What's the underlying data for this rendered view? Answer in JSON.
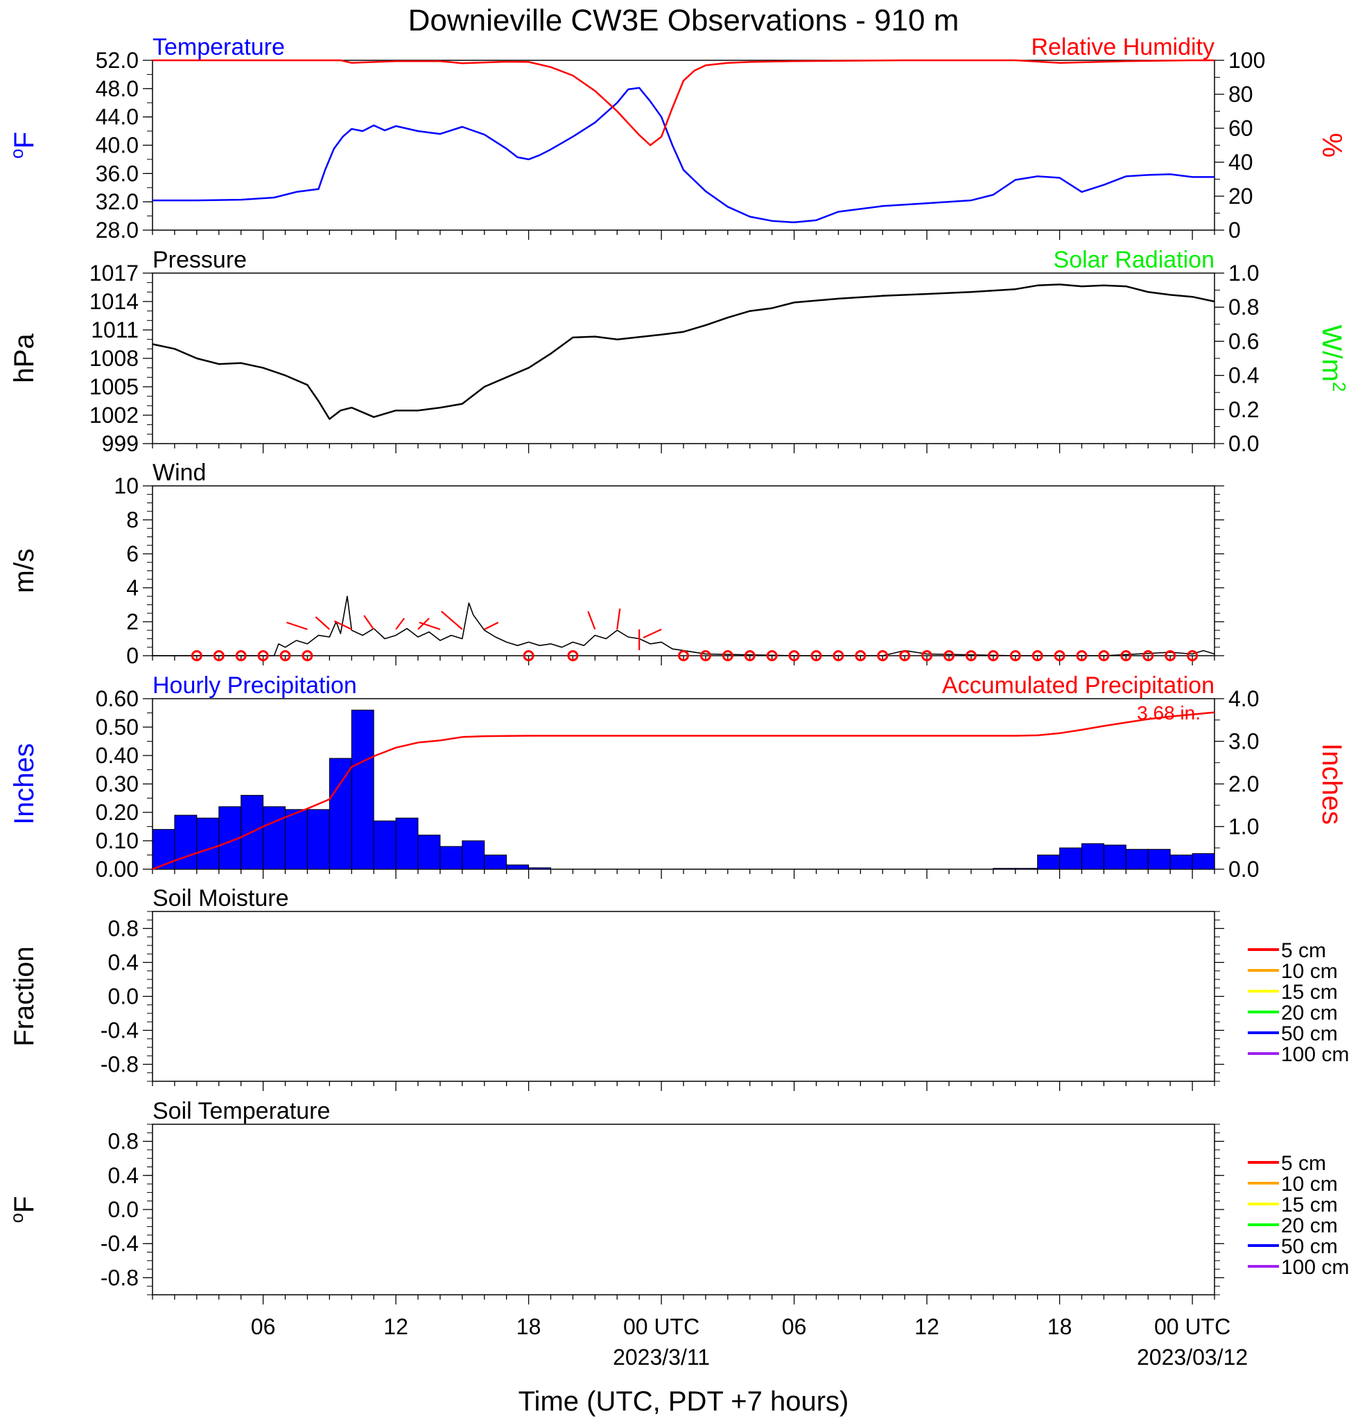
{
  "title": "Downieville CW3E Observations - 910 m",
  "xlabel": "Time (UTC, PDT +7 hours)",
  "x_axis": {
    "tick_labels": [
      "06",
      "12",
      "18",
      "00 UTC",
      "06",
      "12",
      "18",
      "00 UTC"
    ],
    "tick_hours": [
      6,
      12,
      18,
      24,
      30,
      36,
      42,
      48
    ],
    "date_labels": [
      {
        "hour": 24,
        "text": "2023/3/11"
      },
      {
        "hour": 48,
        "text": "2023/03/12"
      }
    ],
    "range_hours": [
      1,
      49
    ]
  },
  "colors": {
    "temperature": "#0000ff",
    "humidity": "#ff0000",
    "pressure": "#000000",
    "solar": "#00ee00",
    "wind": "#000000",
    "barbs": "#ff0000",
    "hourly_precip": "#0000ff",
    "accum_precip": "#ff0000"
  },
  "chart_data": [
    {
      "type": "line",
      "panel": "temperature-humidity",
      "left_title": "Temperature",
      "right_title": "Relative Humidity",
      "left_unit": "°F",
      "right_unit": "%",
      "ylim_left": [
        28,
        52
      ],
      "yticks_left": [
        "28.0",
        "32.0",
        "36.0",
        "40.0",
        "44.0",
        "48.0",
        "52.0"
      ],
      "ylim_right": [
        0,
        100
      ],
      "yticks_right": [
        "0",
        "20",
        "40",
        "60",
        "80",
        "100"
      ],
      "series": [
        {
          "name": "Temperature",
          "axis": "left",
          "x": [
            1,
            3,
            5,
            6.5,
            7.5,
            8.5,
            8.8,
            9.2,
            9.6,
            10,
            10.5,
            11,
            11.5,
            12,
            13,
            14,
            15,
            16,
            17,
            17.5,
            18,
            18.5,
            19,
            20,
            21,
            22,
            22.5,
            23,
            23.5,
            24,
            24.5,
            25,
            26,
            27,
            28,
            29,
            30,
            31,
            32,
            34,
            36,
            38,
            39,
            40,
            41,
            42,
            43,
            44,
            45,
            46,
            47,
            48,
            49
          ],
          "y": [
            32.2,
            32.2,
            32.3,
            32.6,
            33.4,
            33.8,
            36.5,
            39.5,
            41.2,
            42.3,
            42.0,
            42.8,
            42.1,
            42.7,
            42.0,
            41.6,
            42.6,
            41.5,
            39.5,
            38.3,
            38.0,
            38.6,
            39.4,
            41.2,
            43.2,
            46.0,
            47.9,
            48.1,
            46.2,
            44.0,
            40.0,
            36.5,
            33.5,
            31.3,
            29.9,
            29.3,
            29.1,
            29.4,
            30.6,
            31.4,
            31.8,
            32.2,
            33.0,
            35.1,
            35.6,
            35.4,
            33.4,
            34.4,
            35.6,
            35.8,
            35.9,
            35.5,
            35.5
          ]
        },
        {
          "name": "Relative Humidity",
          "axis": "right",
          "x": [
            1,
            6,
            9.5,
            10,
            12,
            14,
            15,
            17,
            18,
            19,
            20,
            21,
            22,
            22.5,
            23,
            23.5,
            24,
            24.5,
            25,
            25.5,
            26,
            27,
            28,
            30,
            35,
            40,
            42,
            45,
            48,
            49
          ],
          "y": [
            100,
            100,
            100,
            98.5,
            99.5,
            99.5,
            98.3,
            99.2,
            99,
            96,
            91,
            82,
            70,
            63,
            56,
            50,
            55,
            72,
            88,
            94,
            97,
            98.5,
            99,
            99.5,
            100,
            100,
            98.5,
            99.5,
            100,
            100
          ]
        }
      ]
    },
    {
      "type": "line",
      "panel": "pressure-solar",
      "left_title": "Pressure",
      "right_title": "Solar Radiation",
      "left_unit": "hPa",
      "right_unit": "W/m",
      "right_unit_sup": "2",
      "ylim_left": [
        999,
        1017
      ],
      "yticks_left": [
        "999",
        "1002",
        "1005",
        "1008",
        "1011",
        "1014",
        "1017"
      ],
      "ylim_right": [
        0,
        1
      ],
      "yticks_right": [
        "0.0",
        "0.2",
        "0.4",
        "0.6",
        "0.8",
        "1.0"
      ],
      "series": [
        {
          "name": "Pressure",
          "axis": "left",
          "x": [
            1,
            2,
            3,
            4,
            5,
            6,
            7,
            8,
            8.5,
            9,
            9.5,
            10,
            11,
            12,
            13,
            14,
            15,
            16,
            17,
            18,
            19,
            20,
            21,
            22,
            24,
            25,
            26,
            27,
            28,
            29,
            30,
            32,
            34,
            36,
            38,
            40,
            41,
            42,
            43,
            44,
            45,
            46,
            47,
            48,
            49
          ],
          "y": [
            1009.5,
            1009,
            1008,
            1007.4,
            1007.5,
            1007,
            1006.2,
            1005.2,
            1003.5,
            1001.6,
            1002.5,
            1002.8,
            1001.8,
            1002.5,
            1002.5,
            1002.8,
            1003.2,
            1005,
            1006,
            1007,
            1008.5,
            1010.2,
            1010.3,
            1010.0,
            1010.5,
            1010.8,
            1011.5,
            1012.3,
            1013,
            1013.3,
            1013.9,
            1014.3,
            1014.6,
            1014.8,
            1015,
            1015.3,
            1015.7,
            1015.8,
            1015.6,
            1015.7,
            1015.6,
            1015.0,
            1014.7,
            1014.5,
            1014
          ]
        }
      ]
    },
    {
      "type": "line",
      "panel": "wind",
      "left_title": "Wind",
      "left_unit": "m/s",
      "ylim_left": [
        0,
        10
      ],
      "yticks_left": [
        "0",
        "2",
        "4",
        "6",
        "8",
        "10"
      ],
      "series": [
        {
          "name": "Wind",
          "axis": "left",
          "x": [
            1,
            6.5,
            6.7,
            7,
            7.5,
            8,
            8.5,
            9,
            9.3,
            9.5,
            9.8,
            10,
            10.5,
            11,
            11.5,
            12,
            12.5,
            13,
            13.5,
            14,
            14.5,
            15,
            15.3,
            15.5,
            16,
            16.5,
            17,
            17.5,
            18,
            18.5,
            19,
            19.5,
            20,
            20.5,
            21,
            21.5,
            22,
            22.5,
            23,
            23.5,
            24,
            24.5,
            25,
            26,
            30,
            34,
            35,
            36,
            40,
            44,
            47,
            48,
            48.5,
            49
          ],
          "y": [
            0,
            0,
            0.7,
            0.5,
            0.9,
            0.7,
            1.2,
            1.1,
            2.0,
            1.3,
            3.5,
            1.5,
            1.2,
            1.6,
            1.0,
            1.2,
            1.6,
            1.1,
            1.4,
            0.9,
            1.2,
            1.0,
            3.1,
            2.4,
            1.5,
            1.1,
            0.8,
            0.6,
            0.8,
            0.6,
            0.7,
            0.5,
            0.8,
            0.6,
            1.2,
            1.0,
            1.5,
            1.1,
            1.0,
            0.7,
            0.8,
            0.4,
            0.3,
            0.1,
            0,
            0,
            0.3,
            0.1,
            0,
            0,
            0.2,
            0.1,
            0.3,
            0.1
          ]
        }
      ],
      "calm_markers_hours": [
        3,
        4,
        5,
        6,
        7,
        8,
        18,
        20,
        25,
        26,
        27,
        28,
        29,
        30,
        31,
        32,
        33,
        34,
        35,
        36,
        37,
        38,
        39,
        40,
        41,
        42,
        43,
        44,
        45,
        46,
        47,
        48
      ],
      "barbs": [
        {
          "hour": 8,
          "dx": -30,
          "dy": -10
        },
        {
          "hour": 9,
          "dx": -20,
          "dy": -18
        },
        {
          "hour": 10,
          "dx": -25,
          "dy": -12
        },
        {
          "hour": 11,
          "dx": -14,
          "dy": -20
        },
        {
          "hour": 12,
          "dx": 12,
          "dy": -16
        },
        {
          "hour": 13,
          "dx": 16,
          "dy": -16
        },
        {
          "hour": 14,
          "dx": -30,
          "dy": -10
        },
        {
          "hour": 15,
          "dx": -30,
          "dy": -26
        },
        {
          "hour": 16,
          "dx": 20,
          "dy": -10
        },
        {
          "hour": 21,
          "dx": -10,
          "dy": -26
        },
        {
          "hour": 22,
          "dx": 4,
          "dy": -30
        },
        {
          "hour": 23,
          "dx": 0,
          "dy": 30
        },
        {
          "hour": 24,
          "dx": -26,
          "dy": 12
        }
      ]
    },
    {
      "type": "bar",
      "panel": "precipitation",
      "left_title": "Hourly Precipitation",
      "right_title": "Accumulated Precipitation",
      "left_unit": "Inches",
      "right_unit": "Inches",
      "annotation": "3.68 in.",
      "ylim_left": [
        0,
        0.6
      ],
      "yticks_left": [
        "0.00",
        "0.10",
        "0.20",
        "0.30",
        "0.40",
        "0.50",
        "0.60"
      ],
      "ylim_right": [
        0,
        4
      ],
      "yticks_right": [
        "0.0",
        "1.0",
        "2.0",
        "3.0",
        "4.0"
      ],
      "hourly_bars": {
        "start_hours": [
          1,
          2,
          3,
          4,
          5,
          6,
          7,
          8,
          9,
          10,
          11,
          12,
          13,
          14,
          15,
          16,
          17,
          18,
          19,
          20,
          21,
          22,
          23,
          24,
          25,
          26,
          27,
          28,
          29,
          30,
          31,
          32,
          33,
          34,
          35,
          36,
          37,
          38,
          39,
          40,
          41,
          42,
          43,
          44,
          45,
          46,
          47,
          48
        ],
        "values": [
          0.14,
          0.19,
          0.18,
          0.22,
          0.26,
          0.22,
          0.21,
          0.21,
          0.39,
          0.56,
          0.17,
          0.18,
          0.12,
          0.08,
          0.1,
          0.05,
          0.015,
          0.005,
          0,
          0,
          0,
          0,
          0,
          0,
          0,
          0,
          0,
          0,
          0,
          0,
          0,
          0,
          0,
          0,
          0,
          0,
          0,
          0,
          0.003,
          0.003,
          0.05,
          0.075,
          0.09,
          0.085,
          0.07,
          0.07,
          0.05,
          0.055
        ]
      },
      "accumulated": {
        "x": [
          1,
          2,
          3,
          4,
          5,
          6,
          7,
          8,
          9,
          10,
          11,
          12,
          13,
          14,
          15,
          16,
          17,
          18,
          24,
          30,
          36,
          40,
          41,
          42,
          43,
          44,
          45,
          46,
          47,
          48,
          49
        ],
        "y": [
          0,
          0.2,
          0.38,
          0.55,
          0.75,
          1.0,
          1.22,
          1.42,
          1.64,
          2.4,
          2.65,
          2.85,
          2.97,
          3.02,
          3.1,
          3.12,
          3.125,
          3.13,
          3.13,
          3.13,
          3.13,
          3.13,
          3.14,
          3.19,
          3.27,
          3.36,
          3.44,
          3.52,
          3.58,
          3.63,
          3.68
        ]
      }
    },
    {
      "type": "line",
      "panel": "soil-moisture",
      "left_title": "Soil Moisture",
      "left_unit": "Fraction",
      "ylim_left": [
        -1,
        1
      ],
      "yticks_left": [
        "-0.8",
        "-0.4",
        "0.0",
        "0.4",
        "0.8"
      ],
      "legend": [
        {
          "name": "5 cm",
          "color": "#ff0000"
        },
        {
          "name": "10 cm",
          "color": "#ffa500"
        },
        {
          "name": "15 cm",
          "color": "#ffff00"
        },
        {
          "name": "20 cm",
          "color": "#00ff00"
        },
        {
          "name": "50 cm",
          "color": "#0000ff"
        },
        {
          "name": "100 cm",
          "color": "#a020f0"
        }
      ],
      "series": []
    },
    {
      "type": "line",
      "panel": "soil-temperature",
      "left_title": "Soil Temperature",
      "left_unit": "°F",
      "ylim_left": [
        -1,
        1
      ],
      "yticks_left": [
        "-0.8",
        "-0.4",
        "0.0",
        "0.4",
        "0.8"
      ],
      "legend": [
        {
          "name": "5 cm",
          "color": "#ff0000"
        },
        {
          "name": "10 cm",
          "color": "#ffa500"
        },
        {
          "name": "15 cm",
          "color": "#ffff00"
        },
        {
          "name": "20 cm",
          "color": "#00ff00"
        },
        {
          "name": "50 cm",
          "color": "#0000ff"
        },
        {
          "name": "100 cm",
          "color": "#a020f0"
        }
      ],
      "series": []
    }
  ]
}
